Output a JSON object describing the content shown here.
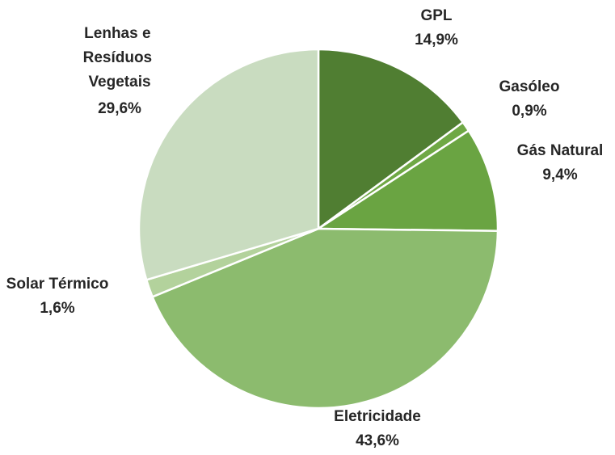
{
  "chart_data": {
    "type": "pie",
    "categories": [
      "GPL",
      "Gasóleo",
      "Gás Natural",
      "Eletricidade",
      "Solar Térmico",
      "Lenhas e Resíduos Vegetais"
    ],
    "values": [
      14.9,
      0.9,
      9.4,
      43.6,
      1.6,
      29.6
    ],
    "value_labels": [
      "14,9%",
      "0,9%",
      "9,4%",
      "43,6%",
      "1,6%",
      "29,6%"
    ],
    "colors": [
      "#507e32",
      "#6fa845",
      "#6aa442",
      "#8cbb6e",
      "#b3d29c",
      "#c9dcc0"
    ]
  }
}
